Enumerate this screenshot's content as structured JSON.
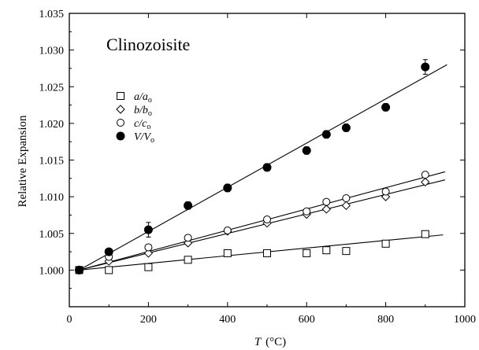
{
  "chart_data": {
    "type": "scatter",
    "title": "Clinozoisite",
    "xlabel_var": "T",
    "xlabel_unit": "(°C)",
    "ylabel": "Relative Expansion",
    "xlim": [
      0,
      1000
    ],
    "ylim": [
      0.995,
      1.035
    ],
    "xticks": [
      0,
      200,
      400,
      600,
      800,
      1000
    ],
    "xtick_labels": [
      "0",
      "200",
      "400",
      "600",
      "800",
      "1000"
    ],
    "yticks": [
      1.0,
      1.005,
      1.01,
      1.015,
      1.02,
      1.025,
      1.03,
      1.035
    ],
    "ytick_labels": [
      "1.000",
      "1.005",
      "1.010",
      "1.015",
      "1.020",
      "1.025",
      "1.030",
      "1.035"
    ],
    "grid": false,
    "legend_position": "upper-left",
    "series": [
      {
        "name": "a/ao",
        "legend_main": "a/a",
        "legend_sub": "o",
        "marker": "open-square",
        "x": [
          25,
          100,
          200,
          300,
          400,
          500,
          600,
          650,
          700,
          800,
          900
        ],
        "y": [
          1.0,
          1.0,
          1.0004,
          1.0014,
          1.0023,
          1.0023,
          1.0023,
          1.0027,
          1.0026,
          1.0036,
          1.0049
        ],
        "fit": {
          "x": [
            25,
            945
          ],
          "y": [
            1.0,
            1.0048
          ]
        }
      },
      {
        "name": "b/bo",
        "legend_main": "b/b",
        "legend_sub": "o",
        "marker": "open-diamond",
        "x": [
          25,
          100,
          200,
          300,
          400,
          500,
          600,
          650,
          700,
          800,
          900
        ],
        "y": [
          1.0,
          1.0012,
          1.0023,
          1.0037,
          1.0053,
          1.0064,
          1.0076,
          1.0083,
          1.0088,
          1.01,
          1.012
        ],
        "fit": {
          "x": [
            25,
            950
          ],
          "y": [
            1.0,
            1.0123
          ]
        }
      },
      {
        "name": "c/co",
        "legend_main": "c/c",
        "legend_sub": "o",
        "marker": "open-circle",
        "x": [
          25,
          100,
          200,
          300,
          400,
          500,
          600,
          650,
          700,
          800,
          900
        ],
        "y": [
          1.0,
          1.0018,
          1.0031,
          1.0044,
          1.0054,
          1.0069,
          1.008,
          1.0093,
          1.0098,
          1.0107,
          1.013
        ],
        "fit": {
          "x": [
            25,
            950
          ],
          "y": [
            1.0,
            1.0134
          ]
        }
      },
      {
        "name": "V/Vo",
        "legend_main": "V/V",
        "legend_sub": "o",
        "marker": "filled-circle",
        "x": [
          25,
          100,
          200,
          300,
          400,
          500,
          600,
          650,
          700,
          800,
          900
        ],
        "y": [
          1.0,
          1.0025,
          1.0055,
          1.0088,
          1.0112,
          1.014,
          1.0163,
          1.0185,
          1.0194,
          1.0222,
          1.0277
        ],
        "yerr": [
          0.0003,
          0.0004,
          0.001,
          0.0005,
          0.0005,
          0.0005,
          0.0005,
          0.0005,
          0.0005,
          0.0005,
          0.001
        ],
        "fit": {
          "x": [
            25,
            955
          ],
          "y": [
            1.0,
            1.028
          ]
        }
      }
    ]
  }
}
